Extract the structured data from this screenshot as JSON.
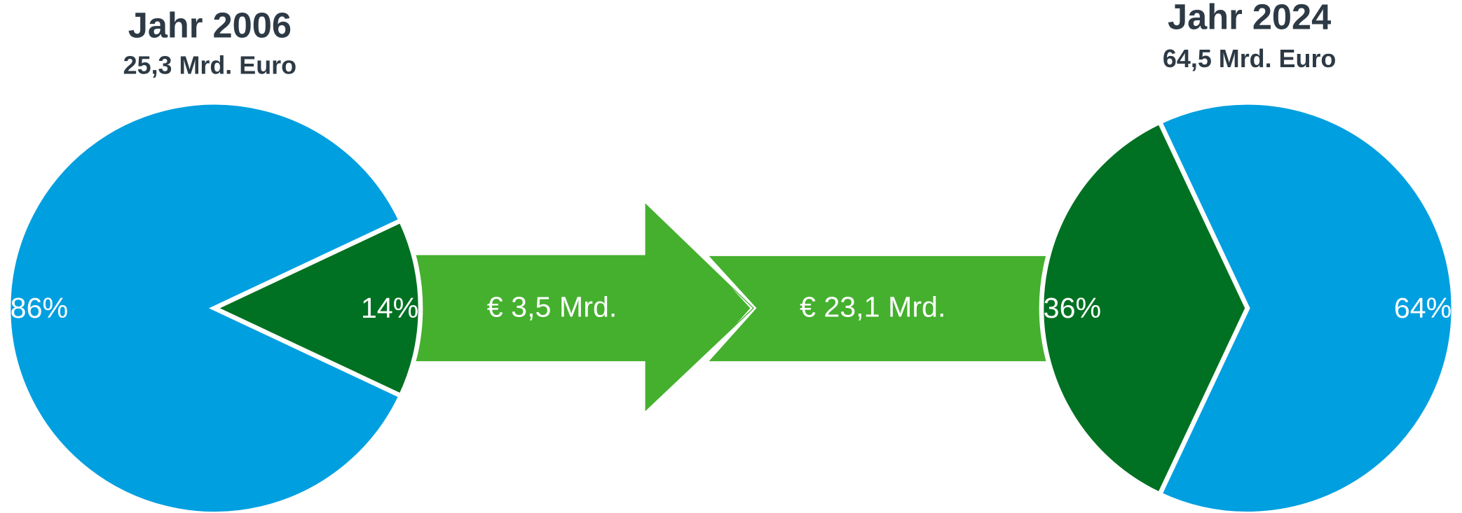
{
  "chart_data": [
    {
      "type": "pie",
      "title": "Jahr 2006",
      "subtitle": "25,3 Mrd. Euro",
      "values": [
        86,
        14
      ],
      "value_labels": [
        "86%",
        "14%"
      ],
      "colors": [
        "#009fe0",
        "#007122"
      ],
      "startangle": 25.2
    },
    {
      "type": "pie",
      "title": "Jahr 2024",
      "subtitle": "64,5 Mrd. Euro",
      "values": [
        36,
        64
      ],
      "value_labels": [
        "36%",
        "64%"
      ],
      "colors": [
        "#007122",
        "#009fe0"
      ],
      "startangle": 115.2
    }
  ],
  "arrow_labels": [
    "€ 3,5 Mrd.",
    "€ 23,1 Mrd."
  ]
}
